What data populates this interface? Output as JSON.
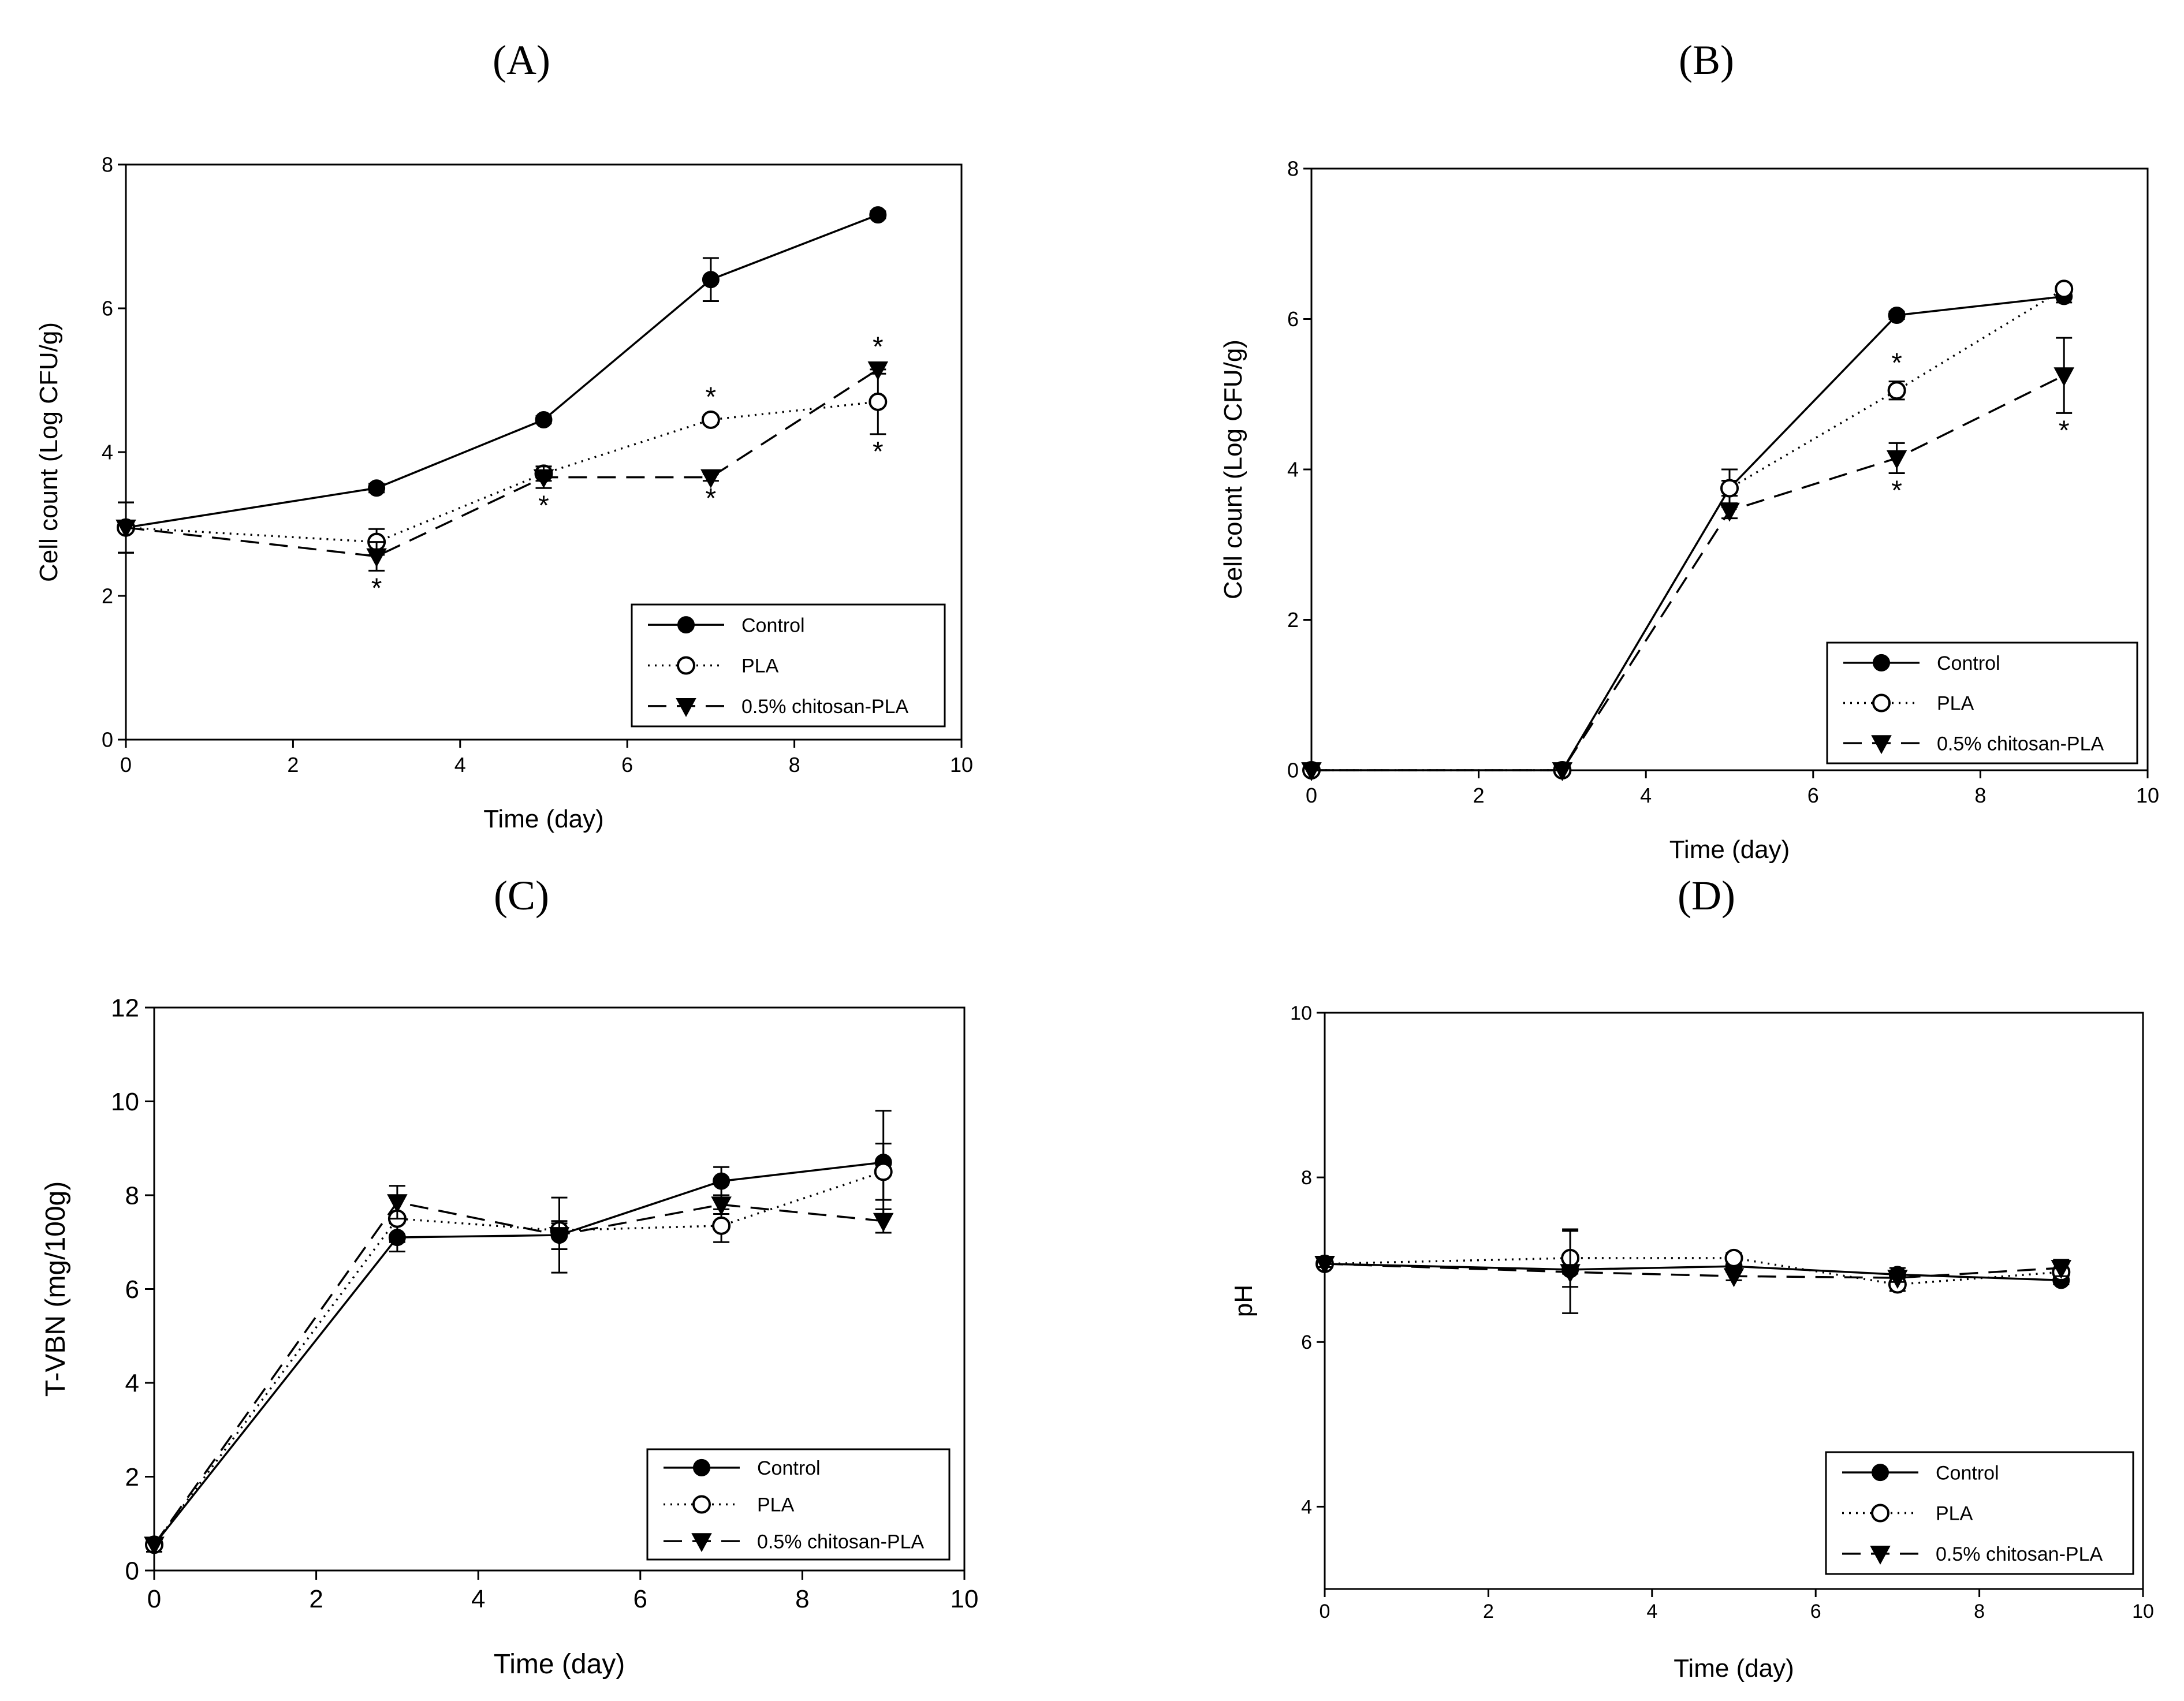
{
  "legend_labels": [
    "Control",
    "PLA",
    "0.5% chitosan-PLA"
  ],
  "series_styles": {
    "Control": {
      "marker": "filled-circle",
      "dash": "solid"
    },
    "PLA": {
      "marker": "open-circle",
      "dash": "dotted"
    },
    "0.5% chitosan-PLA": {
      "marker": "filled-triangle-down",
      "dash": "dashed"
    }
  },
  "colors": {
    "line": "#000000",
    "background": "#ffffff"
  },
  "chart_data": [
    {
      "panel": "(A)",
      "type": "line",
      "xlabel": "Time (day)",
      "ylabel": "Cell count (Log CFU/g)",
      "xlim": [
        0,
        10
      ],
      "ylim": [
        0,
        8
      ],
      "xticks": [
        0,
        2,
        4,
        6,
        8,
        10
      ],
      "yticks": [
        0,
        2,
        4,
        6,
        8
      ],
      "x": [
        0,
        3,
        5,
        7,
        9
      ],
      "legend_position": "bottom-right",
      "series": [
        {
          "name": "Control",
          "values": [
            2.95,
            3.5,
            4.45,
            6.4,
            7.3
          ],
          "errors": [
            0.35,
            0.06,
            0.05,
            0.3,
            0.05
          ]
        },
        {
          "name": "PLA",
          "values": [
            2.95,
            2.75,
            3.7,
            4.45,
            4.7
          ],
          "errors": [
            0.35,
            0.18,
            0.1,
            0.06,
            0.45
          ]
        },
        {
          "name": "0.5% chitosan-PLA",
          "values": [
            2.95,
            2.55,
            3.65,
            3.65,
            5.15
          ],
          "errors": [
            0.35,
            0.2,
            0.15,
            0.05,
            0.06
          ]
        }
      ],
      "annotations": [
        {
          "text": "*",
          "x": 3,
          "series": "0.5% chitosan-PLA",
          "side": "below"
        },
        {
          "text": "*",
          "x": 5,
          "series": "0.5% chitosan-PLA",
          "side": "below"
        },
        {
          "text": "*",
          "x": 7,
          "series": "PLA",
          "side": "above"
        },
        {
          "text": "*",
          "x": 7,
          "series": "0.5% chitosan-PLA",
          "side": "below"
        },
        {
          "text": "*",
          "x": 9,
          "series": "0.5% chitosan-PLA",
          "side": "above"
        },
        {
          "text": "*",
          "x": 9,
          "series": "PLA",
          "side": "below"
        }
      ]
    },
    {
      "panel": "(B)",
      "type": "line",
      "xlabel": "Time (day)",
      "ylabel": "Cell count (Log CFU/g)",
      "xlim": [
        0,
        10
      ],
      "ylim": [
        0,
        8
      ],
      "xticks": [
        0,
        2,
        4,
        6,
        8,
        10
      ],
      "yticks": [
        0,
        2,
        4,
        6,
        8
      ],
      "x": [
        0,
        3,
        5,
        7,
        9
      ],
      "legend_position": "bottom-right",
      "series": [
        {
          "name": "Control",
          "values": [
            0,
            0,
            3.75,
            6.05,
            6.3
          ],
          "errors": [
            0,
            0,
            0.25,
            0.05,
            0.08
          ]
        },
        {
          "name": "PLA",
          "values": [
            0,
            0,
            3.75,
            5.05,
            6.4
          ],
          "errors": [
            0,
            0,
            0.1,
            0.12,
            0.06
          ]
        },
        {
          "name": "0.5% chitosan-PLA",
          "values": [
            0,
            0,
            3.45,
            4.15,
            5.25
          ],
          "errors": [
            0,
            0,
            0.1,
            0.2,
            0.5
          ]
        }
      ],
      "annotations": [
        {
          "text": "*",
          "x": 7,
          "series": "PLA",
          "side": "above"
        },
        {
          "text": "*",
          "x": 7,
          "series": "0.5% chitosan-PLA",
          "side": "below"
        },
        {
          "text": "*",
          "x": 9,
          "series": "0.5% chitosan-PLA",
          "side": "below"
        }
      ]
    },
    {
      "panel": "(C)",
      "type": "line",
      "xlabel": "Time (day)",
      "ylabel": "T-VBN (mg/100g)",
      "xlim": [
        0,
        10
      ],
      "ylim": [
        0,
        12
      ],
      "xticks": [
        0,
        2,
        4,
        6,
        8,
        10
      ],
      "yticks": [
        0,
        2,
        4,
        6,
        8,
        10,
        12
      ],
      "x": [
        0,
        3,
        5,
        7,
        9
      ],
      "legend_position": "bottom-right",
      "series": [
        {
          "name": "Control",
          "values": [
            0.55,
            7.1,
            7.15,
            8.3,
            8.7
          ],
          "errors": [
            0.15,
            0.3,
            0.3,
            0.3,
            1.1
          ]
        },
        {
          "name": "PLA",
          "values": [
            0.55,
            7.5,
            7.25,
            7.35,
            8.5
          ],
          "errors": [
            0.15,
            0.5,
            0.15,
            0.35,
            0.6
          ]
        },
        {
          "name": "0.5% chitosan-PLA",
          "values": [
            0.55,
            7.85,
            7.15,
            7.8,
            7.45
          ],
          "errors": [
            0.15,
            0.35,
            0.8,
            0.2,
            0.25
          ]
        }
      ],
      "annotations": []
    },
    {
      "panel": "(D)",
      "type": "line",
      "xlabel": "Time (day)",
      "ylabel": "pH",
      "xlim": [
        0,
        10
      ],
      "ylim": [
        3,
        10
      ],
      "xticks": [
        0,
        2,
        4,
        6,
        8,
        10
      ],
      "yticks": [
        4,
        6,
        8,
        10
      ],
      "x": [
        0,
        3,
        5,
        7,
        9
      ],
      "legend_position": "bottom-right",
      "series": [
        {
          "name": "Control",
          "values": [
            6.95,
            6.88,
            6.92,
            6.82,
            6.75
          ],
          "errors": [
            0.04,
            0.05,
            0.05,
            0.08,
            0.05
          ]
        },
        {
          "name": "PLA",
          "values": [
            6.95,
            7.02,
            7.02,
            6.7,
            6.85
          ],
          "errors": [
            0.04,
            0.35,
            0.06,
            0.08,
            0.1
          ]
        },
        {
          "name": "0.5% chitosan-PLA",
          "values": [
            6.95,
            6.85,
            6.8,
            6.78,
            6.9
          ],
          "errors": [
            0.04,
            0.5,
            0.05,
            0.05,
            0.1
          ]
        }
      ],
      "annotations": []
    }
  ]
}
